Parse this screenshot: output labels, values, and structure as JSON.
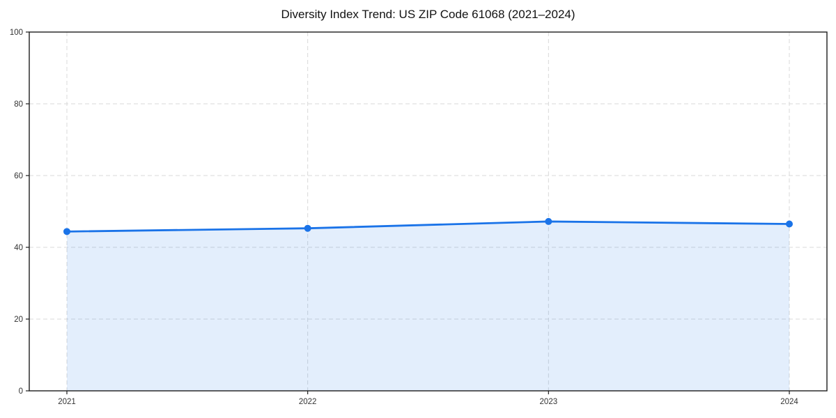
{
  "chart_data": {
    "type": "line",
    "title": "Diversity Index Trend: US ZIP Code 61068 (2021–2024)",
    "x": [
      "2021",
      "2022",
      "2023",
      "2024"
    ],
    "series": [
      {
        "name": "Diversity Index",
        "values": [
          44.4,
          45.3,
          47.2,
          46.5
        ]
      }
    ],
    "xlabel": "",
    "ylabel": "",
    "ylim": [
      0,
      100
    ],
    "yticks": [
      0,
      20,
      40,
      60,
      80,
      100
    ],
    "grid": "dashed-both-axes",
    "legend": "none",
    "marker": "circle",
    "area_fill": true,
    "colors": {
      "line": "#1a73e8",
      "marker": "#1a73e8",
      "area": "rgba(26,115,232,0.12)",
      "grid": "#d9d9d9",
      "spine": "#1c1c1c",
      "tick_label": "#333333",
      "title": "#111111",
      "background": "#ffffff"
    }
  }
}
